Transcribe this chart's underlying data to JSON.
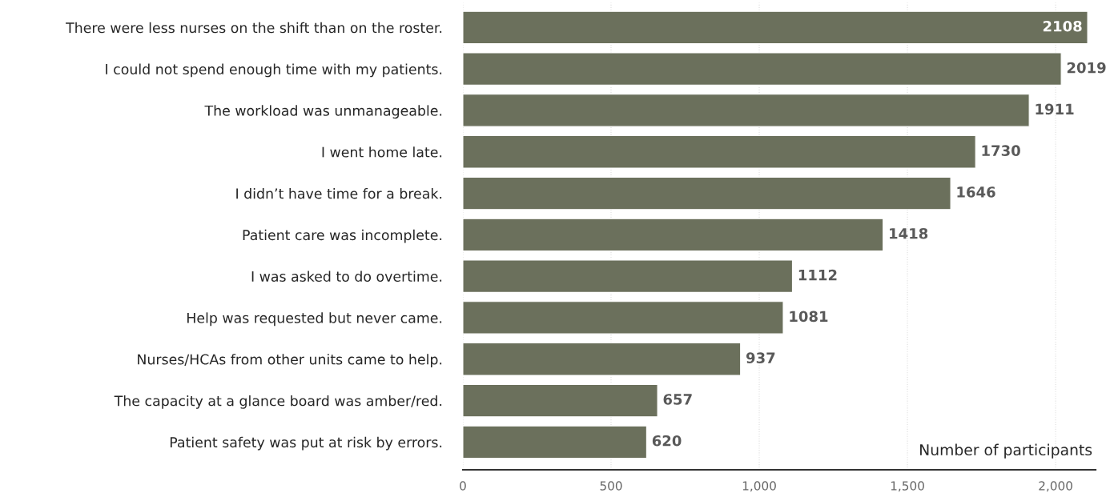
{
  "chart_data": {
    "type": "bar",
    "orientation": "horizontal",
    "xlabel": "Number of participants",
    "categories": [
      "There were less nurses on the shift than on the roster.",
      "I could not spend enough time with my patients.",
      "The workload was unmanageable.",
      "I went home late.",
      "I didn’t have time for a break.",
      "Patient care was incomplete.",
      "I was asked to do overtime.",
      "Help was requested but never came.",
      "Nurses/HCAs from other units came to help.",
      "The capacity at a glance board was amber/red.",
      "Patient safety was put at risk by errors."
    ],
    "values": [
      2108,
      2019,
      1911,
      1730,
      1646,
      1418,
      1112,
      1081,
      937,
      657,
      620
    ],
    "color": "#6b705c",
    "xlim": [
      0,
      2135
    ],
    "xticks": [
      0,
      500,
      {
        "value": 1000,
        "label": "1,000"
      },
      {
        "value": 1500,
        "label": "1,500"
      },
      {
        "value": 2000,
        "label": "2,000"
      }
    ],
    "grid": "x",
    "data_labels": true
  }
}
